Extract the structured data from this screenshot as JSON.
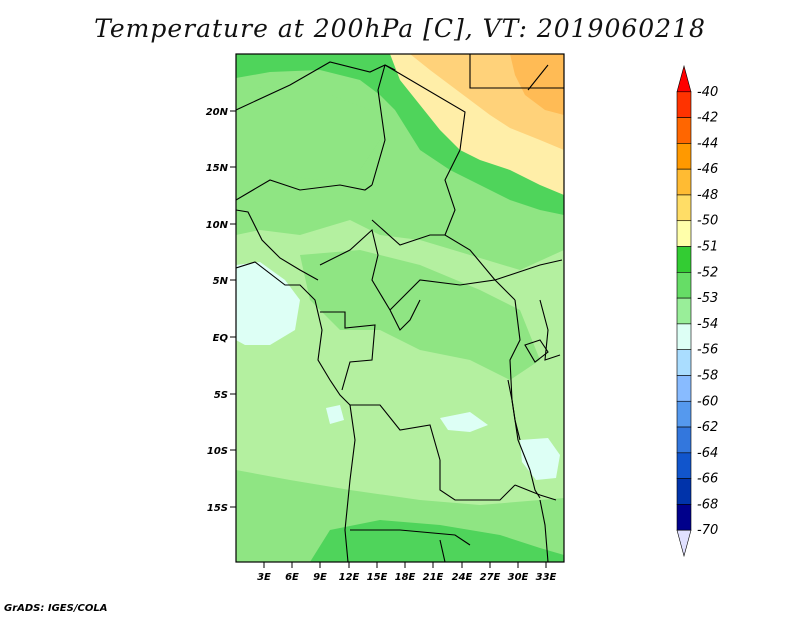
{
  "title": "Temperature at 200hPa [C], VT: 2019060218",
  "credit": "GrADS: IGES/COLA",
  "lat_labels": [
    "20N",
    "15N",
    "10N",
    "5N",
    "EQ",
    "5S",
    "10S",
    "15S"
  ],
  "lon_labels": [
    "3E",
    "6E",
    "9E",
    "12E",
    "15E",
    "18E",
    "21E",
    "24E",
    "27E",
    "30E",
    "33E"
  ],
  "colorbar": {
    "levels": [
      "-40",
      "-42",
      "-44",
      "-46",
      "-48",
      "-50",
      "-51",
      "-52",
      "-53",
      "-54",
      "-56",
      "-58",
      "-60",
      "-62",
      "-64",
      "-66",
      "-68",
      "-70"
    ],
    "colors": [
      "#ff0000",
      "#ff3300",
      "#ff6600",
      "#ff9900",
      "#ffbb33",
      "#ffdd66",
      "#ffffaa",
      "#33cc33",
      "#66dd66",
      "#99ee99",
      "#ddfff5",
      "#aaddff",
      "#88bbff",
      "#5599ee",
      "#3377dd",
      "#1155cc",
      "#0033aa",
      "#00008b",
      "#e0e0ff"
    ]
  },
  "colors": {
    "bg_green": "#b4f0a0",
    "mid_green": "#8fe583",
    "dark_green": "#4fd45b",
    "cyan": "#ddfff5",
    "pale_yellow": "#ffeea8",
    "yellow": "#ffd27a",
    "orange": "#ffbb55"
  }
}
